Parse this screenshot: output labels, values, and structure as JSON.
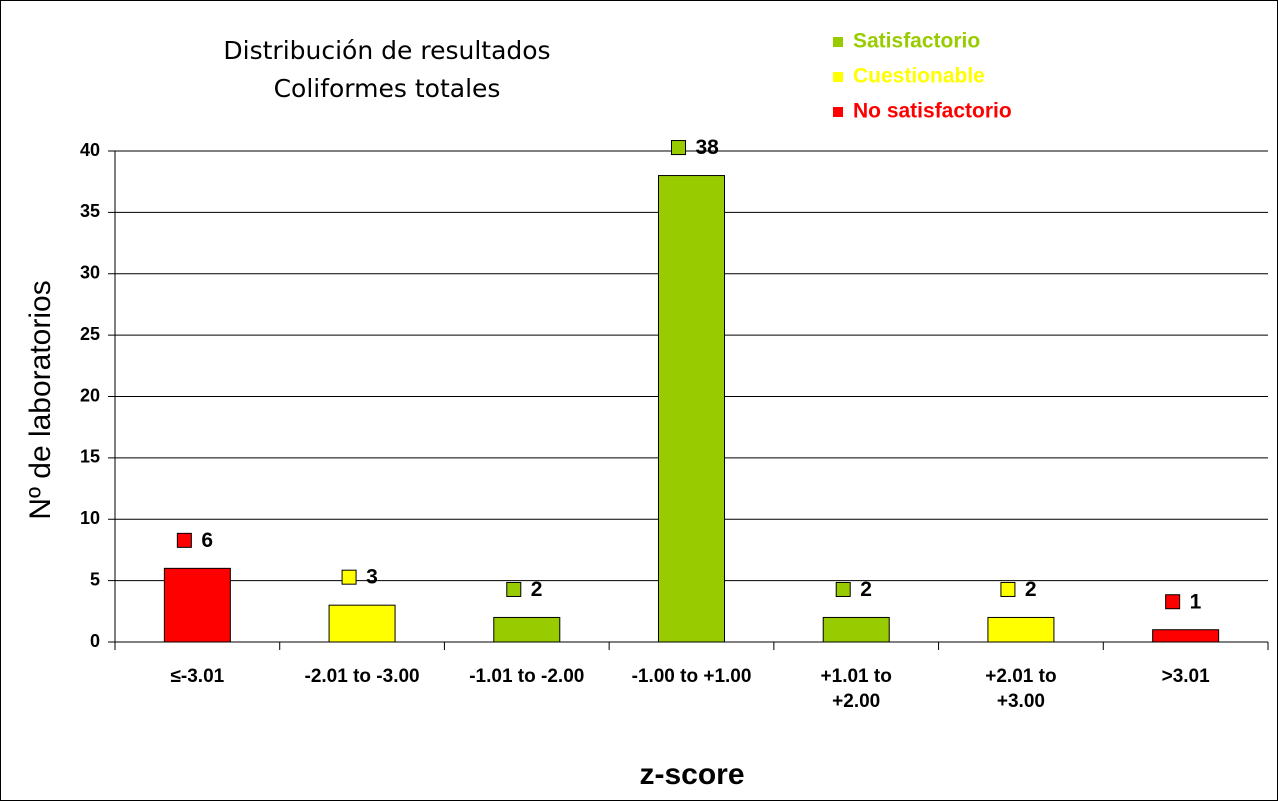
{
  "chart_data": {
    "type": "bar",
    "title": "Distribución de resultados",
    "subtitle": "Coliformes totales",
    "x_label": "z-score",
    "y_label": "Nº de laboratorios",
    "categories": [
      "≤-3.01",
      "-2.01 to -3.00",
      "-1.01 to -2.00",
      "-1.00 to +1.00",
      "+1.01 to +2.00",
      "+2.01 to +3.00",
      ">3.01"
    ],
    "series": [
      {
        "name": "Satisfactorio",
        "color": "#99cc00",
        "values": [
          null,
          null,
          2,
          38,
          2,
          null,
          null
        ]
      },
      {
        "name": "Cuestionable",
        "color": "#ffff00",
        "values": [
          null,
          3,
          null,
          null,
          null,
          2,
          null
        ]
      },
      {
        "name": "No satisfactorio",
        "color": "#ff0000",
        "values": [
          6,
          null,
          null,
          null,
          null,
          null,
          1
        ]
      }
    ],
    "ylim": [
      0,
      40
    ],
    "yticks": [
      0,
      5,
      10,
      15,
      20,
      25,
      30,
      35,
      40
    ],
    "grid": true,
    "legend": "top-right"
  }
}
